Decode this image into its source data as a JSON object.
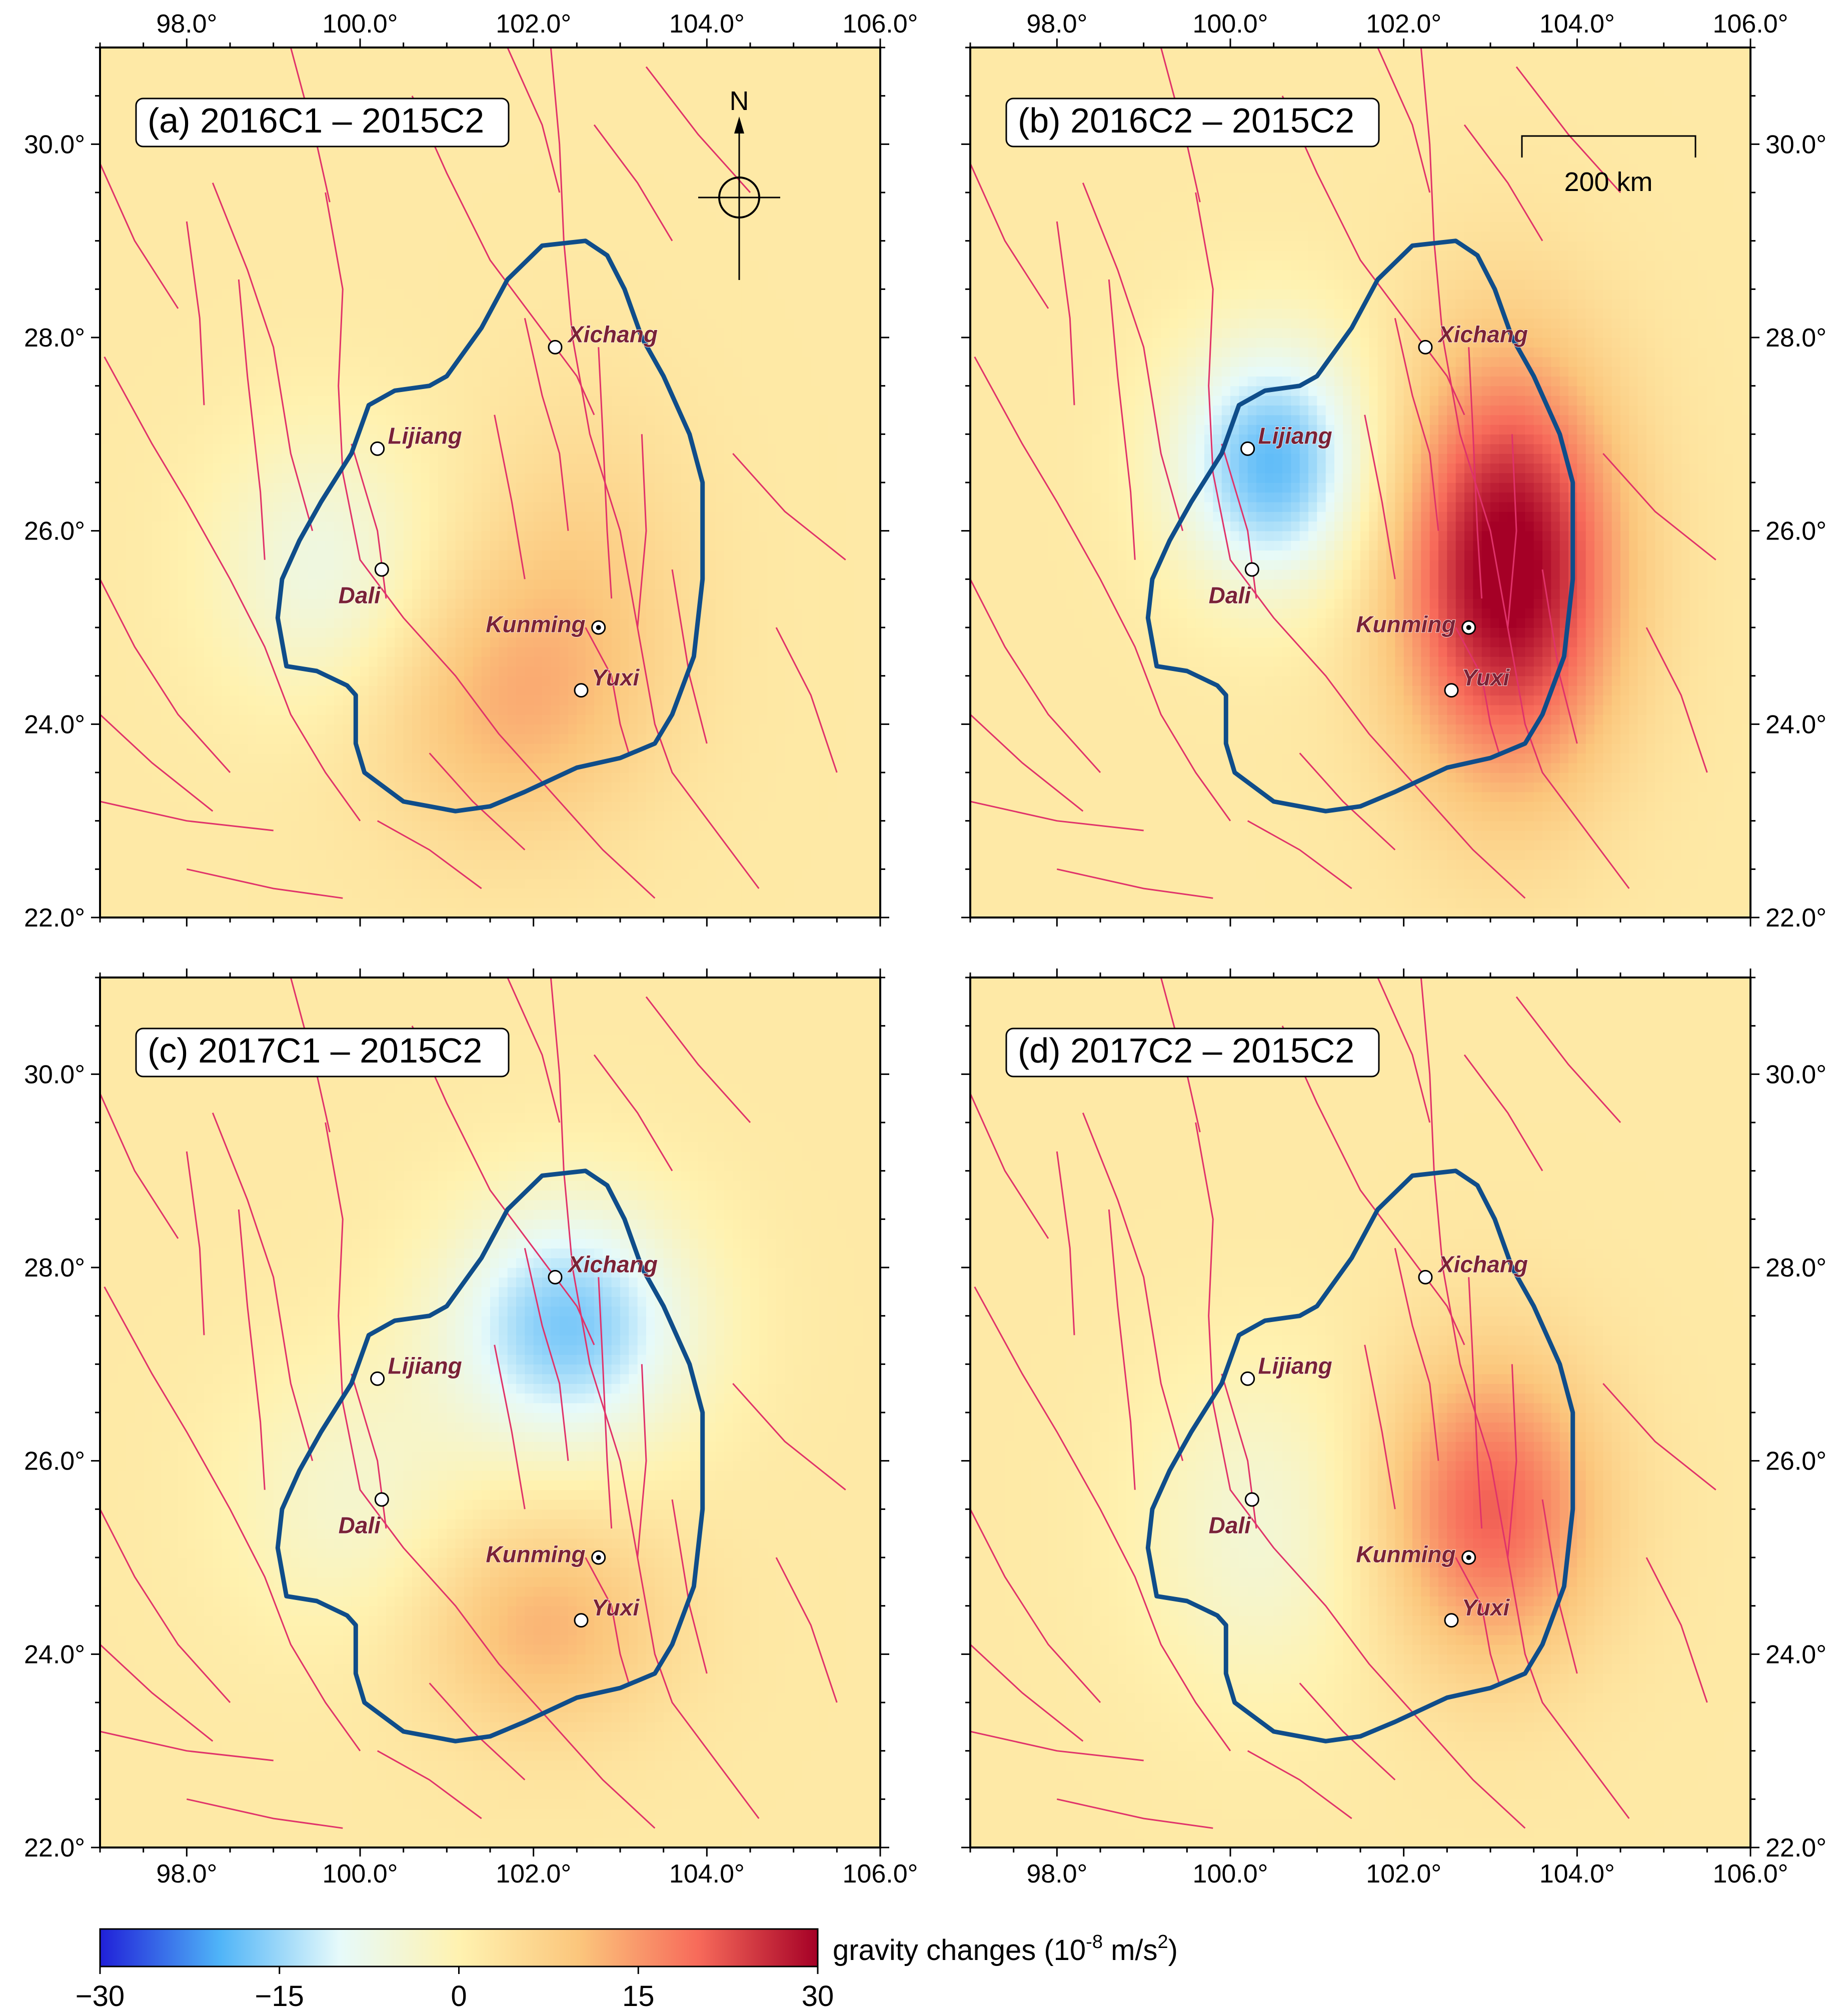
{
  "map": {
    "lon_range": [
      97.0,
      106.0
    ],
    "lat_range": [
      22.0,
      31.0
    ],
    "lon_ticks": [
      98,
      100,
      102,
      104,
      106
    ],
    "lat_ticks": [
      22,
      24,
      26,
      28,
      30
    ],
    "lon_tick_labels": [
      "98.0°",
      "100.0°",
      "102.0°",
      "104.0°",
      "106.0°"
    ],
    "lat_tick_labels": [
      "22.0°",
      "24.0°",
      "26.0°",
      "28.0°",
      "30.0°"
    ]
  },
  "panels": [
    {
      "id": "a",
      "title": "(a) 2016C1 – 2015C2",
      "anomalies": [
        {
          "lon": 99.6,
          "lat": 25.6,
          "amp": -9,
          "sx": 0.9,
          "sy": 1.0
        },
        {
          "lon": 101.6,
          "lat": 24.2,
          "amp": 9,
          "sx": 1.1,
          "sy": 1.0
        },
        {
          "lon": 102.6,
          "lat": 25.5,
          "amp": 5,
          "sx": 0.9,
          "sy": 1.3
        }
      ]
    },
    {
      "id": "b",
      "title": "(b) 2016C2 – 2015C2",
      "anomalies": [
        {
          "lon": 100.5,
          "lat": 26.7,
          "amp": -21,
          "sx": 0.8,
          "sy": 0.9
        },
        {
          "lon": 103.2,
          "lat": 25.6,
          "amp": 30,
          "sx": 0.9,
          "sy": 1.5
        }
      ]
    },
    {
      "id": "c",
      "title": "(c) 2017C1 – 2015C2",
      "anomalies": [
        {
          "lon": 102.4,
          "lat": 27.4,
          "amp": -19,
          "sx": 1.0,
          "sy": 0.9
        },
        {
          "lon": 99.9,
          "lat": 25.6,
          "amp": -6,
          "sx": 1.0,
          "sy": 1.0
        },
        {
          "lon": 102.1,
          "lat": 24.3,
          "amp": 10,
          "sx": 1.0,
          "sy": 0.8
        }
      ]
    },
    {
      "id": "d",
      "title": "(d) 2017C2 – 2015C2",
      "anomalies": [
        {
          "lon": 103.0,
          "lat": 25.5,
          "amp": 19,
          "sx": 0.9,
          "sy": 1.1
        },
        {
          "lon": 100.4,
          "lat": 25.3,
          "amp": -7,
          "sx": 1.0,
          "sy": 1.2
        }
      ]
    }
  ],
  "cities": [
    {
      "name": "Xichang",
      "lon": 102.25,
      "lat": 27.9,
      "label_dx": 0.15,
      "label_dy": 0.05,
      "capital": false
    },
    {
      "name": "Lijiang",
      "lon": 100.2,
      "lat": 26.85,
      "label_dx": 0.12,
      "label_dy": 0.05,
      "capital": false
    },
    {
      "name": "Dali",
      "lon": 100.25,
      "lat": 25.6,
      "label_dx": -0.5,
      "label_dy": -0.35,
      "capital": false
    },
    {
      "name": "Kunming",
      "lon": 102.75,
      "lat": 25.0,
      "label_dx": -1.3,
      "label_dy": -0.05,
      "capital": true
    },
    {
      "name": "Yuxi",
      "lon": 102.55,
      "lat": 24.35,
      "label_dx": 0.12,
      "label_dy": 0.05,
      "capital": false
    }
  ],
  "outline": [
    [
      101.1,
      23.1
    ],
    [
      100.5,
      23.2
    ],
    [
      100.05,
      23.5
    ],
    [
      99.95,
      23.8
    ],
    [
      99.95,
      24.3
    ],
    [
      99.85,
      24.4
    ],
    [
      99.5,
      24.55
    ],
    [
      99.15,
      24.6
    ],
    [
      99.05,
      25.1
    ],
    [
      99.1,
      25.5
    ],
    [
      99.3,
      25.9
    ],
    [
      99.55,
      26.3
    ],
    [
      99.9,
      26.8
    ],
    [
      100.1,
      27.3
    ],
    [
      100.4,
      27.45
    ],
    [
      100.8,
      27.5
    ],
    [
      101.0,
      27.6
    ],
    [
      101.4,
      28.1
    ],
    [
      101.7,
      28.6
    ],
    [
      102.1,
      28.95
    ],
    [
      102.6,
      29.0
    ],
    [
      102.85,
      28.85
    ],
    [
      103.05,
      28.5
    ],
    [
      103.25,
      28.0
    ],
    [
      103.5,
      27.6
    ],
    [
      103.8,
      27.0
    ],
    [
      103.95,
      26.5
    ],
    [
      103.95,
      25.5
    ],
    [
      103.85,
      24.7
    ],
    [
      103.6,
      24.1
    ],
    [
      103.4,
      23.8
    ],
    [
      103.0,
      23.65
    ],
    [
      102.5,
      23.55
    ],
    [
      101.9,
      23.3
    ],
    [
      101.5,
      23.15
    ],
    [
      101.1,
      23.1
    ]
  ],
  "faults": [
    [
      [
        102.2,
        31.0
      ],
      [
        102.3,
        30.0
      ],
      [
        102.35,
        29.0
      ],
      [
        102.45,
        28.0
      ],
      [
        102.65,
        27.0
      ],
      [
        103.0,
        26.0
      ],
      [
        103.2,
        25.0
      ],
      [
        103.4,
        24.0
      ],
      [
        103.6,
        23.5
      ],
      [
        104.6,
        22.3
      ]
    ],
    [
      [
        101.7,
        31.0
      ],
      [
        102.1,
        30.2
      ],
      [
        102.3,
        29.5
      ]
    ],
    [
      [
        100.6,
        30.5
      ],
      [
        101.0,
        29.7
      ],
      [
        101.5,
        28.8
      ],
      [
        102.0,
        28.2
      ],
      [
        102.5,
        27.6
      ],
      [
        102.7,
        27.2
      ]
    ],
    [
      [
        99.6,
        29.5
      ],
      [
        99.8,
        28.5
      ],
      [
        99.75,
        27.5
      ],
      [
        99.8,
        26.6
      ],
      [
        100.0,
        25.7
      ],
      [
        100.5,
        25.1
      ],
      [
        101.1,
        24.5
      ],
      [
        101.6,
        23.9
      ],
      [
        102.1,
        23.4
      ],
      [
        102.8,
        22.7
      ],
      [
        103.4,
        22.2
      ]
    ],
    [
      [
        98.3,
        29.6
      ],
      [
        98.7,
        28.7
      ],
      [
        99.0,
        27.9
      ],
      [
        99.2,
        26.8
      ],
      [
        99.45,
        26.0
      ]
    ],
    [
      [
        97.05,
        27.8
      ],
      [
        97.6,
        26.9
      ],
      [
        98.0,
        26.3
      ],
      [
        98.5,
        25.5
      ],
      [
        98.9,
        24.8
      ],
      [
        99.2,
        24.1
      ],
      [
        99.6,
        23.5
      ],
      [
        100.0,
        23.0
      ]
    ],
    [
      [
        97.0,
        25.5
      ],
      [
        97.4,
        24.8
      ],
      [
        97.9,
        24.1
      ],
      [
        98.5,
        23.5
      ]
    ],
    [
      [
        97.0,
        24.1
      ],
      [
        97.6,
        23.6
      ],
      [
        98.3,
        23.1
      ]
    ],
    [
      [
        97.0,
        23.2
      ],
      [
        98.0,
        23.0
      ],
      [
        99.0,
        22.9
      ]
    ],
    [
      [
        98.0,
        22.5
      ],
      [
        99.0,
        22.3
      ],
      [
        99.8,
        22.2
      ]
    ],
    [
      [
        100.2,
        23.0
      ],
      [
        100.8,
        22.7
      ],
      [
        101.4,
        22.3
      ]
    ],
    [
      [
        100.8,
        23.7
      ],
      [
        101.3,
        23.2
      ],
      [
        101.9,
        22.7
      ]
    ],
    [
      [
        102.6,
        25.0
      ],
      [
        102.9,
        24.5
      ],
      [
        103.0,
        24.0
      ],
      [
        103.1,
        23.7
      ]
    ],
    [
      [
        102.75,
        27.9
      ],
      [
        102.8,
        27.0
      ],
      [
        102.85,
        26.0
      ],
      [
        102.9,
        25.3
      ]
    ],
    [
      [
        103.25,
        27.0
      ],
      [
        103.3,
        26.0
      ],
      [
        103.2,
        25.0
      ]
    ],
    [
      [
        103.6,
        25.6
      ],
      [
        103.8,
        24.5
      ],
      [
        104.0,
        23.8
      ]
    ],
    [
      [
        101.9,
        28.2
      ],
      [
        102.1,
        27.4
      ],
      [
        102.3,
        26.8
      ],
      [
        102.4,
        26.0
      ]
    ],
    [
      [
        101.55,
        27.2
      ],
      [
        101.75,
        26.3
      ],
      [
        101.9,
        25.5
      ]
    ],
    [
      [
        99.9,
        26.9
      ],
      [
        100.2,
        26.0
      ],
      [
        100.3,
        25.3
      ]
    ],
    [
      [
        98.6,
        28.6
      ],
      [
        98.7,
        27.6
      ],
      [
        98.85,
        26.4
      ],
      [
        98.9,
        25.7
      ]
    ],
    [
      [
        98.0,
        29.2
      ],
      [
        98.15,
        28.2
      ],
      [
        98.2,
        27.3
      ]
    ],
    [
      [
        97.0,
        29.8
      ],
      [
        97.4,
        29.0
      ],
      [
        97.9,
        28.3
      ]
    ],
    [
      [
        99.2,
        31.0
      ],
      [
        99.5,
        30.0
      ],
      [
        99.65,
        29.4
      ]
    ],
    [
      [
        103.3,
        30.8
      ],
      [
        103.9,
        30.1
      ],
      [
        104.5,
        29.5
      ]
    ],
    [
      [
        102.7,
        30.2
      ],
      [
        103.2,
        29.6
      ],
      [
        103.6,
        29.0
      ]
    ],
    [
      [
        104.8,
        25.0
      ],
      [
        105.2,
        24.3
      ],
      [
        105.5,
        23.5
      ]
    ],
    [
      [
        104.3,
        26.8
      ],
      [
        104.9,
        26.2
      ],
      [
        105.6,
        25.7
      ]
    ]
  ],
  "scale_bar": {
    "label": "200 km"
  },
  "north_arrow": {
    "label": "N"
  },
  "colorbar": {
    "label_prefix": "gravity changes (10",
    "label_exp": "-8",
    "label_mid": " m/s",
    "label_exp2": "2",
    "label_suffix": ")",
    "min": -30,
    "max": 30,
    "ticks": [
      -30,
      -15,
      0,
      15,
      30
    ],
    "tick_labels": [
      "−30",
      "−15",
      "0",
      "15",
      "30"
    ],
    "colors": [
      "#2020d8",
      "#4fb4f8",
      "#e6fafa",
      "#fff2b0",
      "#fbc67c",
      "#f76a5a",
      "#a50026"
    ]
  },
  "colors": {
    "fault": "#e0326a",
    "outline": "#0f4d8a"
  }
}
